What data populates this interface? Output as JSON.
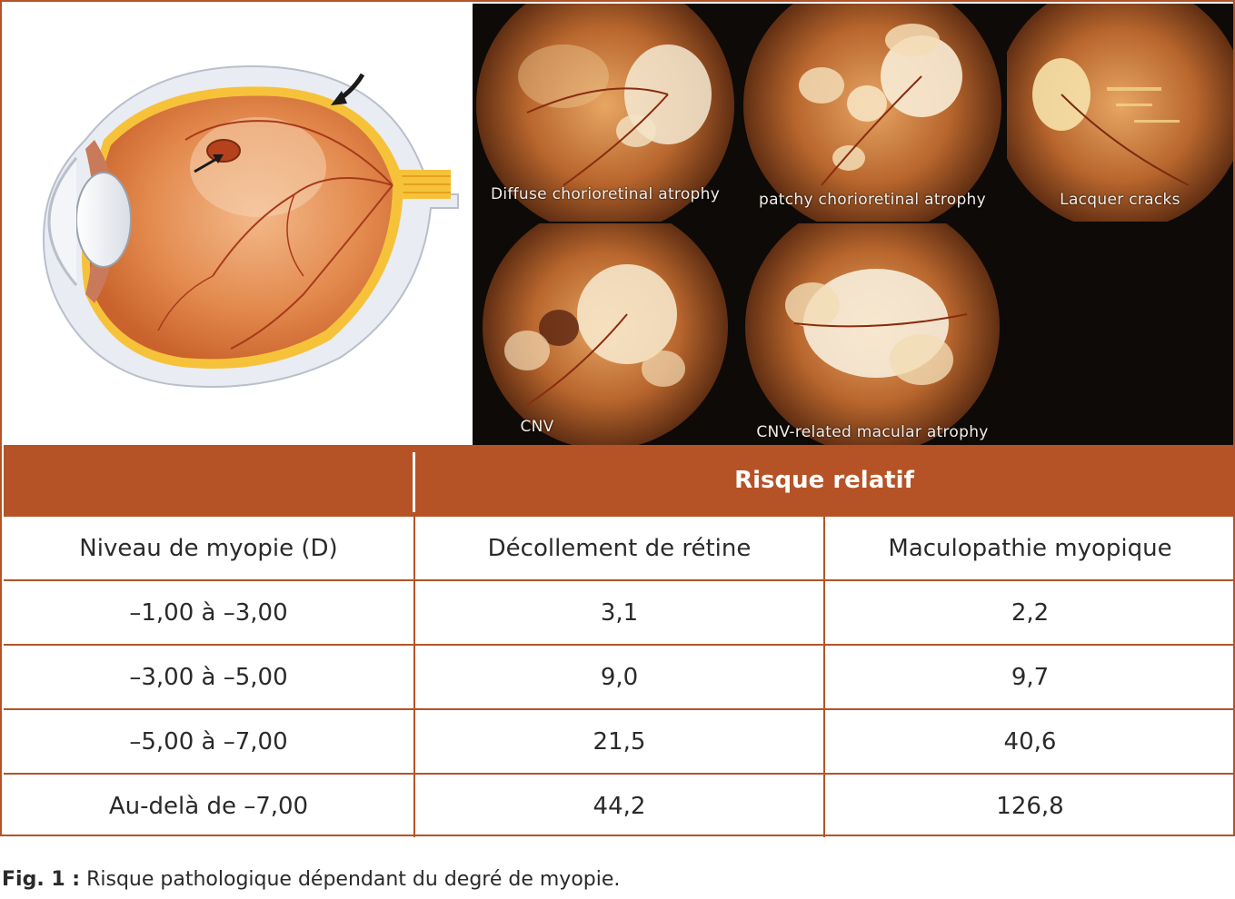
{
  "figure": {
    "fundus_labels": [
      "Diffuse chorioretinal atrophy",
      "patchy chorioretinal atrophy",
      "Lacquer cracks",
      "CNV",
      "CNV-related macular atrophy"
    ],
    "colors": {
      "accent": "#b55327",
      "panel_bg": "#0e0a07"
    }
  },
  "table": {
    "group_header": "Risque relatif",
    "columns": [
      "Niveau de myopie (D)",
      "Décollement de rétine",
      "Maculopathie myopique"
    ],
    "rows": [
      [
        "–1,00 à –3,00",
        "3,1",
        "2,2"
      ],
      [
        "–3,00 à –5,00",
        "9,0",
        "9,7"
      ],
      [
        "–5,00 à –7,00",
        "21,5",
        "40,6"
      ],
      [
        "Au-delà de –7,00",
        "44,2",
        "126,8"
      ]
    ]
  },
  "caption": {
    "label": "Fig. 1 :",
    "text": " Risque pathologique dépendant du degré de myopie."
  }
}
